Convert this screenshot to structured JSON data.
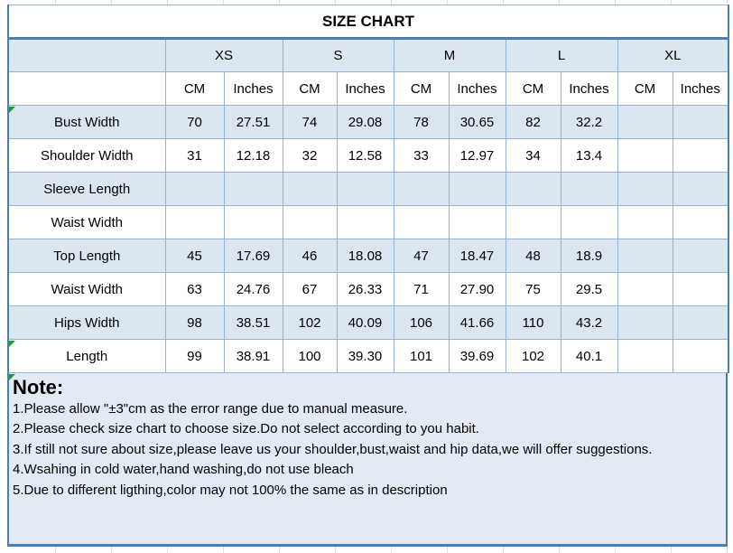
{
  "table": {
    "title": "SIZE CHART",
    "sizes": [
      "XS",
      "S",
      "M",
      "L",
      "XL"
    ],
    "unit_headers": [
      "CM",
      "Inches"
    ],
    "rows": [
      {
        "label": "Bust Width",
        "values": [
          "70",
          "27.51",
          "74",
          "29.08",
          "78",
          "30.65",
          "82",
          "32.2",
          "",
          ""
        ]
      },
      {
        "label": "Shoulder Width",
        "values": [
          "31",
          "12.18",
          "32",
          "12.58",
          "33",
          "12.97",
          "34",
          "13.4",
          "",
          ""
        ]
      },
      {
        "label": "Sleeve Length",
        "values": [
          "",
          "",
          "",
          "",
          "",
          "",
          "",
          "",
          "",
          ""
        ]
      },
      {
        "label": "Waist Width",
        "values": [
          "",
          "",
          "",
          "",
          "",
          "",
          "",
          "",
          "",
          ""
        ]
      },
      {
        "label": "Top Length",
        "values": [
          "45",
          "17.69",
          "46",
          "18.08",
          "47",
          "18.47",
          "48",
          "18.9",
          "",
          ""
        ]
      },
      {
        "label": "Waist Width",
        "values": [
          "63",
          "24.76",
          "67",
          "26.33",
          "71",
          "27.90",
          "75",
          "29.5",
          "",
          ""
        ]
      },
      {
        "label": "Hips Width",
        "values": [
          "98",
          "38.51",
          "102",
          "40.09",
          "106",
          "41.66",
          "110",
          "43.2",
          "",
          ""
        ]
      },
      {
        "label": "Length",
        "values": [
          "99",
          "38.91",
          "100",
          "39.30",
          "101",
          "39.69",
          "102",
          "40.1",
          "",
          ""
        ]
      }
    ]
  },
  "note": {
    "heading": "Note:",
    "lines": [
      "1.Please allow \"±3\"cm as the error range due to manual measure.",
      "2.Please check size chart to choose size.Do not select according to you habit.",
      "3.If still not sure about size,please leave us your shoulder,bust,waist and hip data,we will offer suggestions.",
      "4.Wsahing in cold water,hand washing,do not use bleach",
      "5.Due to different ligthing,color may not 100% the same as in description"
    ]
  },
  "colors": {
    "row_fill": "#dce6f1",
    "note_fill": "#e2ebf5",
    "border": "#95b3d7",
    "border_strong": "#4a7eb5",
    "grid_faint": "#d9e0ea",
    "text": "#000000",
    "error_triangle": "#1f9a3b"
  }
}
